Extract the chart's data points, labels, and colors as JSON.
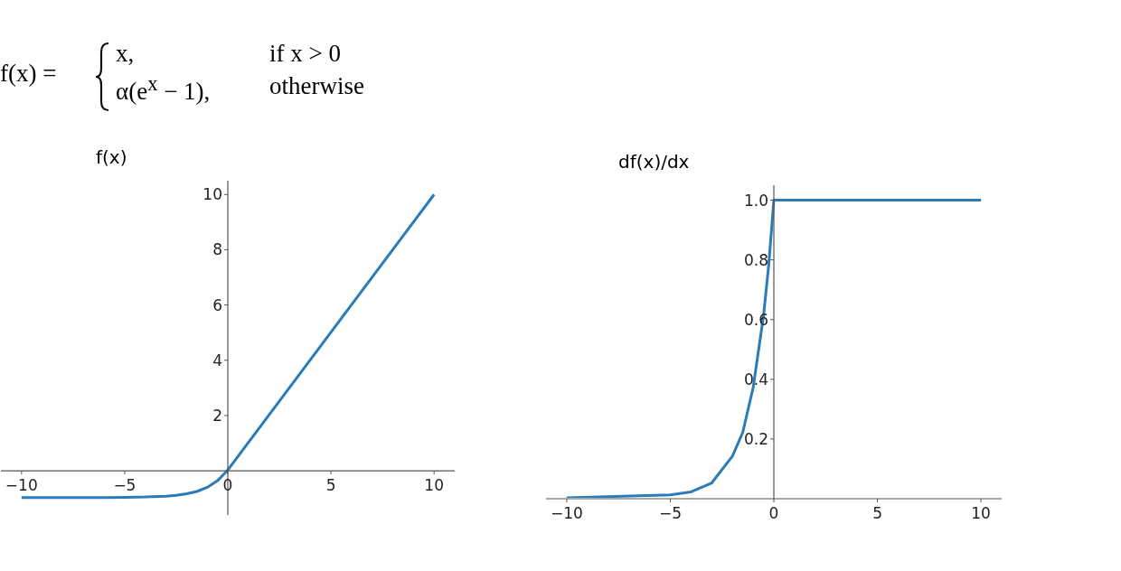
{
  "chart_data": [
    {
      "type": "line",
      "title": "f(x)",
      "annotations": [
        "f(x) =",
        "x,",
        "if x > 0",
        "α(e$^{x}$ − 1),",
        "otherwise"
      ],
      "x": [
        -10,
        -8,
        -6,
        -5,
        -4,
        -3,
        -2.5,
        -2,
        -1.5,
        -1,
        -0.5,
        0,
        10
      ],
      "series": [
        {
          "color": "#2b7bb9",
          "values": [
            -1.0,
            -1.0,
            -1.0,
            -0.99,
            -0.98,
            -0.95,
            -0.92,
            -0.86,
            -0.78,
            -0.63,
            -0.39,
            0,
            10
          ]
        }
      ],
      "xlim": [
        -11,
        11
      ],
      "ylim": [
        -1.6,
        10.5
      ],
      "xticks": [
        -10,
        -5,
        0,
        5,
        10
      ],
      "yticks": [
        2,
        4,
        6,
        8,
        10
      ]
    },
    {
      "type": "line",
      "title": "df(x)/dx",
      "x": [
        -10,
        -5,
        -4,
        -3,
        -2,
        -1.5,
        -1,
        -0.5,
        -0.25,
        0,
        10
      ],
      "series": [
        {
          "color": "#2b7bb9",
          "values": [
            0,
            0.01,
            0.02,
            0.05,
            0.14,
            0.22,
            0.37,
            0.61,
            0.78,
            1.0,
            1.0
          ]
        }
      ],
      "xlim": [
        -11,
        11
      ],
      "ylim": [
        0,
        1.05
      ],
      "xticks": [
        -10,
        -5,
        0,
        5,
        10
      ],
      "yticks": [
        0.2,
        0.4,
        0.6,
        {
          "value": 0.8,
          "label": "0.8"
        },
        {
          "value": 1,
          "label": "1.0"
        }
      ]
    }
  ]
}
